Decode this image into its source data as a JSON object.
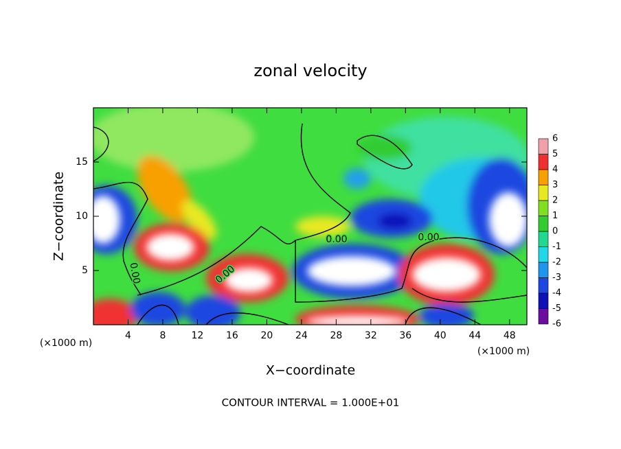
{
  "chart_data": {
    "type": "contour",
    "title": "zonal velocity",
    "xlabel": "X−coordinate",
    "ylabel": "Z−coordinate",
    "unit_label": "(×1000 m)",
    "footer": "CONTOUR INTERVAL = 1.000E+01",
    "xlim": [
      0,
      50
    ],
    "ylim": [
      0,
      20
    ],
    "xticks": [
      4,
      8,
      12,
      16,
      20,
      24,
      28,
      32,
      36,
      40,
      44,
      48
    ],
    "yticks": [
      5,
      10,
      15
    ],
    "colorbar": {
      "levels": [
        -6,
        -5,
        -4,
        -3,
        -2,
        -1,
        0,
        1,
        2,
        3,
        4,
        5,
        6
      ],
      "colors": [
        "#6a0da0",
        "#1010b8",
        "#1e46e0",
        "#1e96f0",
        "#20d8e8",
        "#20d890",
        "#30cc30",
        "#80e020",
        "#e8e820",
        "#f8a000",
        "#f03030",
        "#f0a0a8"
      ]
    },
    "contour_labels": [
      "0.00",
      "0.00",
      "0.00",
      "0.00"
    ]
  }
}
